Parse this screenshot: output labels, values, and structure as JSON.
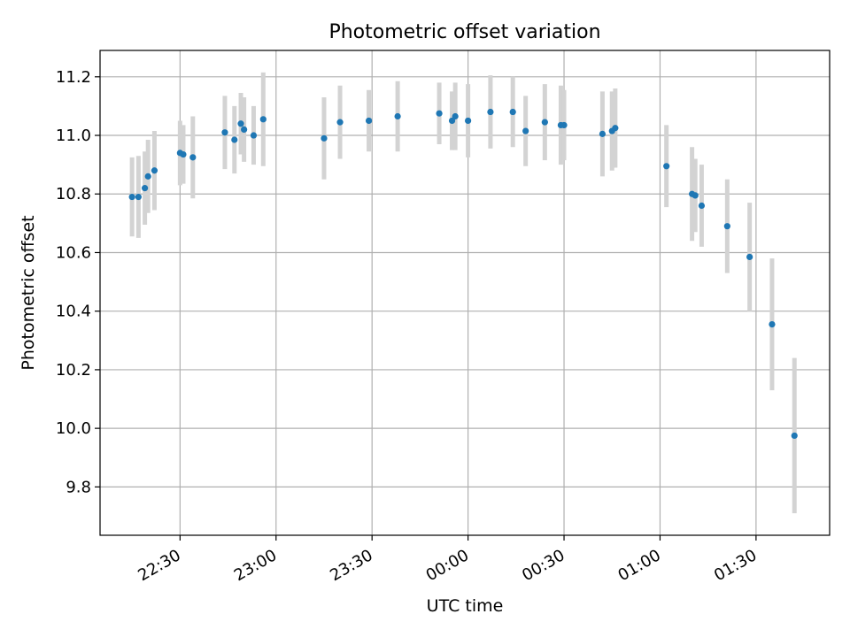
{
  "chart_data": {
    "type": "scatter",
    "title": "Photometric offset variation",
    "xlabel": "UTC time",
    "ylabel": "Photometric offset",
    "x_axis_type": "time",
    "xlim": [
      "22:05",
      "01:53"
    ],
    "ylim": [
      9.635,
      11.29
    ],
    "grid": true,
    "xticks": [
      "22:30",
      "23:00",
      "23:30",
      "00:00",
      "00:30",
      "01:00",
      "01:30"
    ],
    "xtick_time_values": [
      "22:30",
      "23:00",
      "23:30",
      "00:00",
      "00:30",
      "01:00",
      "01:30"
    ],
    "yticks": [
      9.8,
      10.0,
      10.2,
      10.4,
      10.6,
      10.8,
      11.0,
      11.2
    ],
    "yticks_labels": [
      "9.8",
      "10.0",
      "10.2",
      "10.4",
      "10.6",
      "10.8",
      "11.0",
      "11.2"
    ],
    "colors": {
      "point": "#1f77b4",
      "errorbar": "#d3d3d3",
      "grid": "#b0b0b0"
    },
    "points": [
      {
        "time": "22:15",
        "y": 10.79,
        "yerr": 0.135
      },
      {
        "time": "22:17",
        "y": 10.79,
        "yerr": 0.14
      },
      {
        "time": "22:19",
        "y": 10.82,
        "yerr": 0.125
      },
      {
        "time": "22:20",
        "y": 10.86,
        "yerr": 0.125
      },
      {
        "time": "22:22",
        "y": 10.88,
        "yerr": 0.135
      },
      {
        "time": "22:30",
        "y": 10.94,
        "yerr": 0.11
      },
      {
        "time": "22:31",
        "y": 10.935,
        "yerr": 0.1
      },
      {
        "time": "22:34",
        "y": 10.925,
        "yerr": 0.14
      },
      {
        "time": "22:44",
        "y": 11.01,
        "yerr": 0.125
      },
      {
        "time": "22:47",
        "y": 10.985,
        "yerr": 0.115
      },
      {
        "time": "22:49",
        "y": 11.04,
        "yerr": 0.105
      },
      {
        "time": "22:50",
        "y": 11.02,
        "yerr": 0.11
      },
      {
        "time": "22:53",
        "y": 11.0,
        "yerr": 0.1
      },
      {
        "time": "22:56",
        "y": 11.055,
        "yerr": 0.16
      },
      {
        "time": "23:15",
        "y": 10.99,
        "yerr": 0.14
      },
      {
        "time": "23:20",
        "y": 11.045,
        "yerr": 0.125
      },
      {
        "time": "23:29",
        "y": 11.05,
        "yerr": 0.105
      },
      {
        "time": "23:38",
        "y": 11.065,
        "yerr": 0.12
      },
      {
        "time": "23:51",
        "y": 11.075,
        "yerr": 0.105
      },
      {
        "time": "23:55",
        "y": 11.05,
        "yerr": 0.1
      },
      {
        "time": "23:56",
        "y": 11.065,
        "yerr": 0.115
      },
      {
        "time": "00:00",
        "y": 11.05,
        "yerr": 0.125
      },
      {
        "time": "00:07",
        "y": 11.08,
        "yerr": 0.125
      },
      {
        "time": "00:14",
        "y": 11.08,
        "yerr": 0.12
      },
      {
        "time": "00:18",
        "y": 11.015,
        "yerr": 0.12
      },
      {
        "time": "00:24",
        "y": 11.045,
        "yerr": 0.13
      },
      {
        "time": "00:29",
        "y": 11.035,
        "yerr": 0.135
      },
      {
        "time": "00:30",
        "y": 11.035,
        "yerr": 0.12
      },
      {
        "time": "00:42",
        "y": 11.005,
        "yerr": 0.145
      },
      {
        "time": "00:45",
        "y": 11.015,
        "yerr": 0.135
      },
      {
        "time": "00:46",
        "y": 11.025,
        "yerr": 0.135
      },
      {
        "time": "01:02",
        "y": 10.895,
        "yerr": 0.14
      },
      {
        "time": "01:10",
        "y": 10.8,
        "yerr": 0.16
      },
      {
        "time": "01:11",
        "y": 10.795,
        "yerr": 0.125
      },
      {
        "time": "01:13",
        "y": 10.76,
        "yerr": 0.14
      },
      {
        "time": "01:21",
        "y": 10.69,
        "yerr": 0.16
      },
      {
        "time": "01:28",
        "y": 10.585,
        "yerr": 0.185
      },
      {
        "time": "01:35",
        "y": 10.355,
        "yerr": 0.225
      },
      {
        "time": "01:42",
        "y": 9.975,
        "yerr": 0.265
      }
    ]
  }
}
